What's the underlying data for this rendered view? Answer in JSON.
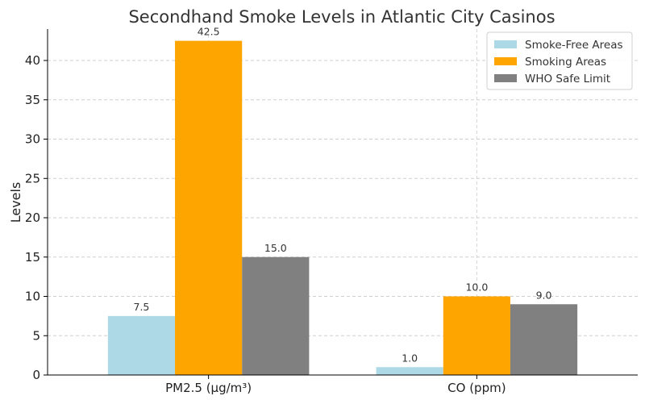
{
  "chart_data": {
    "type": "bar",
    "title": "Secondhand Smoke Levels in Atlantic City Casinos",
    "xlabel": "",
    "ylabel": "Levels",
    "categories": [
      "PM2.5 (µg/m³)",
      "CO (ppm)"
    ],
    "series": [
      {
        "name": "Smoke-Free Areas",
        "color": "#add8e6",
        "values": [
          7.5,
          1.0
        ],
        "labels": [
          "7.5",
          "1.0"
        ]
      },
      {
        "name": "Smoking Areas",
        "color": "#ffa500",
        "values": [
          42.5,
          10.0
        ],
        "labels": [
          "42.5",
          "10.0"
        ]
      },
      {
        "name": "WHO Safe Limit",
        "color": "#808080",
        "values": [
          15.0,
          9.0
        ],
        "labels": [
          "15.0",
          "9.0"
        ]
      }
    ],
    "ylim": [
      0,
      44
    ],
    "yticks": [
      0,
      5,
      10,
      15,
      20,
      25,
      30,
      35,
      40
    ],
    "grid": true,
    "legend": "top-right"
  }
}
